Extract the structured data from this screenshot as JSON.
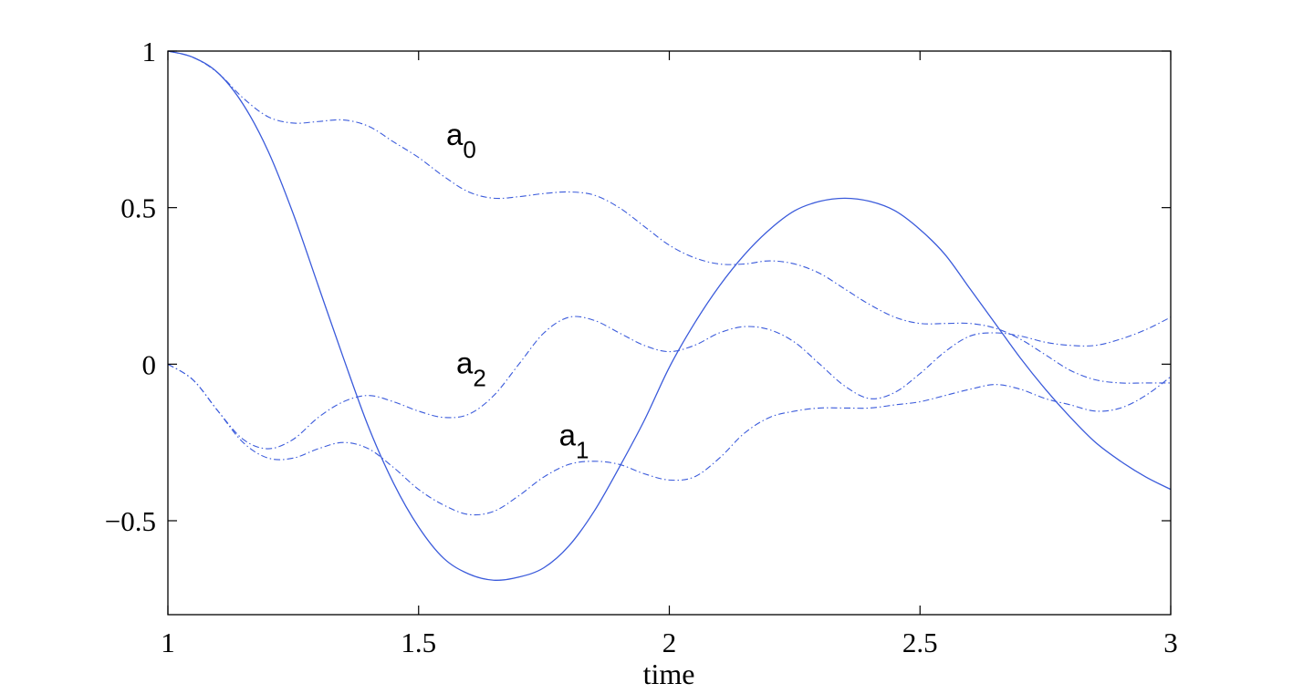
{
  "chart_data": {
    "type": "line",
    "xlabel": "time",
    "ylabel": "",
    "title": "",
    "xlim": [
      1,
      3
    ],
    "ylim": [
      -0.8,
      1
    ],
    "xticks": [
      1,
      1.5,
      2,
      2.5,
      3
    ],
    "xtick_labels": [
      "1",
      "1.5",
      "2",
      "2.5",
      "3"
    ],
    "yticks": [
      1,
      0.5,
      0,
      -0.5
    ],
    "ytick_labels": [
      "1",
      "0.5",
      "0",
      "−0.5"
    ],
    "grid": false,
    "line_color": "#3b5bdb",
    "series": [
      {
        "style": "solid",
        "x": [
          1.0,
          1.05,
          1.1,
          1.15,
          1.2,
          1.25,
          1.3,
          1.35,
          1.4,
          1.45,
          1.5,
          1.55,
          1.6,
          1.65,
          1.7,
          1.75,
          1.8,
          1.85,
          1.9,
          1.95,
          2.0,
          2.05,
          2.1,
          2.15,
          2.2,
          2.25,
          2.3,
          2.35,
          2.4,
          2.45,
          2.5,
          2.55,
          2.6,
          2.65,
          2.7,
          2.75,
          2.8,
          2.85,
          2.9,
          2.95,
          3.0
        ],
        "y": [
          1.0,
          0.98,
          0.93,
          0.83,
          0.68,
          0.48,
          0.25,
          0.02,
          -0.2,
          -0.38,
          -0.52,
          -0.62,
          -0.67,
          -0.69,
          -0.68,
          -0.65,
          -0.58,
          -0.47,
          -0.33,
          -0.18,
          -0.01,
          0.13,
          0.25,
          0.35,
          0.43,
          0.49,
          0.52,
          0.53,
          0.52,
          0.49,
          0.43,
          0.35,
          0.24,
          0.13,
          0.02,
          -0.08,
          -0.17,
          -0.25,
          -0.31,
          -0.36,
          -0.4
        ]
      },
      {
        "name": "a_0",
        "style": "dashdot",
        "x": [
          1.0,
          1.05,
          1.1,
          1.15,
          1.2,
          1.25,
          1.3,
          1.35,
          1.4,
          1.45,
          1.5,
          1.55,
          1.6,
          1.65,
          1.7,
          1.75,
          1.8,
          1.85,
          1.9,
          1.95,
          2.0,
          2.05,
          2.1,
          2.15,
          2.2,
          2.25,
          2.3,
          2.35,
          2.4,
          2.45,
          2.5,
          2.55,
          2.6,
          2.65,
          2.7,
          2.75,
          2.8,
          2.85,
          2.9,
          2.95,
          3.0
        ],
        "y": [
          1.0,
          0.98,
          0.93,
          0.85,
          0.79,
          0.77,
          0.775,
          0.78,
          0.76,
          0.71,
          0.66,
          0.6,
          0.55,
          0.53,
          0.535,
          0.545,
          0.55,
          0.54,
          0.5,
          0.44,
          0.38,
          0.34,
          0.32,
          0.32,
          0.33,
          0.32,
          0.29,
          0.24,
          0.19,
          0.15,
          0.13,
          0.13,
          0.13,
          0.115,
          0.08,
          0.03,
          -0.02,
          -0.05,
          -0.06,
          -0.06,
          -0.06
        ]
      },
      {
        "name": "a_1",
        "style": "dashdot",
        "x": [
          1.0,
          1.05,
          1.1,
          1.15,
          1.2,
          1.25,
          1.3,
          1.35,
          1.4,
          1.45,
          1.5,
          1.55,
          1.6,
          1.65,
          1.7,
          1.75,
          1.8,
          1.85,
          1.9,
          1.95,
          2.0,
          2.05,
          2.1,
          2.15,
          2.2,
          2.25,
          2.3,
          2.35,
          2.4,
          2.45,
          2.5,
          2.55,
          2.6,
          2.65,
          2.7,
          2.75,
          2.8,
          2.85,
          2.9,
          2.95,
          3.0
        ],
        "y": [
          0.0,
          -0.05,
          -0.15,
          -0.25,
          -0.3,
          -0.3,
          -0.27,
          -0.25,
          -0.27,
          -0.33,
          -0.4,
          -0.45,
          -0.48,
          -0.47,
          -0.42,
          -0.36,
          -0.32,
          -0.31,
          -0.32,
          -0.35,
          -0.37,
          -0.36,
          -0.3,
          -0.22,
          -0.17,
          -0.15,
          -0.14,
          -0.14,
          -0.14,
          -0.13,
          -0.12,
          -0.1,
          -0.08,
          -0.065,
          -0.08,
          -0.11,
          -0.13,
          -0.15,
          -0.14,
          -0.1,
          -0.04
        ]
      },
      {
        "name": "a_2",
        "style": "dashdot",
        "x": [
          1.0,
          1.05,
          1.1,
          1.15,
          1.2,
          1.25,
          1.3,
          1.35,
          1.4,
          1.45,
          1.5,
          1.55,
          1.6,
          1.65,
          1.7,
          1.75,
          1.8,
          1.85,
          1.9,
          1.95,
          2.0,
          2.05,
          2.1,
          2.15,
          2.2,
          2.25,
          2.3,
          2.35,
          2.4,
          2.45,
          2.5,
          2.55,
          2.6,
          2.65,
          2.7,
          2.75,
          2.8,
          2.85,
          2.9,
          2.95,
          3.0
        ],
        "y": [
          0.0,
          -0.05,
          -0.15,
          -0.24,
          -0.27,
          -0.24,
          -0.17,
          -0.12,
          -0.1,
          -0.12,
          -0.15,
          -0.17,
          -0.16,
          -0.1,
          0.0,
          0.1,
          0.15,
          0.14,
          0.1,
          0.06,
          0.04,
          0.06,
          0.1,
          0.12,
          0.11,
          0.07,
          0.0,
          -0.07,
          -0.11,
          -0.09,
          -0.03,
          0.04,
          0.09,
          0.1,
          0.09,
          0.07,
          0.06,
          0.06,
          0.08,
          0.11,
          0.15
        ]
      }
    ],
    "annotations": [
      {
        "text": "a",
        "sub": "0",
        "x": 1.555,
        "y": 0.7
      },
      {
        "text": "a",
        "sub": "1",
        "x": 1.78,
        "y": -0.26
      },
      {
        "text": "a",
        "sub": "2",
        "x": 1.575,
        "y": -0.03
      }
    ]
  }
}
